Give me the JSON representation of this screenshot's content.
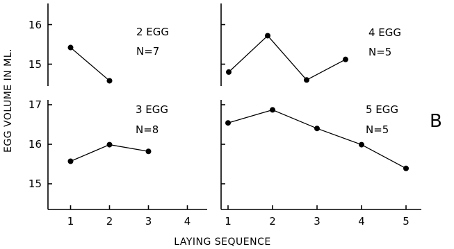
{
  "chart_data": [
    {
      "type": "line",
      "panel": "2 EGG",
      "annotation": [
        "2 EGG",
        "N=7"
      ],
      "x": [
        1,
        2
      ],
      "values": [
        15.42,
        14.58
      ],
      "xlim": [
        0.5,
        4.5
      ],
      "xticks": [
        1,
        2,
        3,
        4
      ],
      "ylim": [
        14.5,
        16.6
      ],
      "yticks": [
        15,
        16
      ]
    },
    {
      "type": "line",
      "panel": "4 EGG",
      "annotation": [
        "4 EGG",
        "N=5"
      ],
      "x": [
        1,
        2,
        3,
        4
      ],
      "values": [
        14.8,
        15.72,
        14.6,
        15.12
      ],
      "xlim": [
        0.5,
        5.5
      ],
      "xticks": [
        1,
        2,
        3,
        4,
        5
      ],
      "ylim": [
        14.5,
        16.6
      ],
      "yticks": [
        15,
        16
      ]
    },
    {
      "type": "line",
      "panel": "3 EGG",
      "annotation": [
        "3 EGG",
        "N=8"
      ],
      "x": [
        1,
        2,
        3
      ],
      "values": [
        15.57,
        15.99,
        15.82
      ],
      "xlim": [
        0.5,
        4.5
      ],
      "xticks": [
        1,
        2,
        3,
        4
      ],
      "xticklabels": [
        "1",
        "2",
        "3",
        "4"
      ],
      "ylim": [
        14.5,
        17
      ],
      "yticks": [
        15,
        16,
        17
      ]
    },
    {
      "type": "line",
      "panel": "5 EGG",
      "annotation": [
        "5 EGG",
        "N=5"
      ],
      "x": [
        1,
        2,
        3,
        4,
        5
      ],
      "values": [
        16.54,
        16.87,
        16.4,
        15.99,
        15.39
      ],
      "xlim": [
        0.5,
        5.5
      ],
      "xticks": [
        1,
        2,
        3,
        4,
        5
      ],
      "xticklabels": [
        "1",
        "2",
        "3",
        "4",
        "5"
      ],
      "ylim": [
        14.5,
        17
      ],
      "yticks": [
        15,
        16,
        17
      ]
    }
  ],
  "labels": {
    "ylabel": "EGG VOLUME IN ML.",
    "xlabel": "LAYING SEQUENCE",
    "figure_letter": "B",
    "top_yticklabels": [
      "16",
      "15"
    ],
    "bottom_yticklabels": [
      "17",
      "16",
      "15"
    ]
  }
}
